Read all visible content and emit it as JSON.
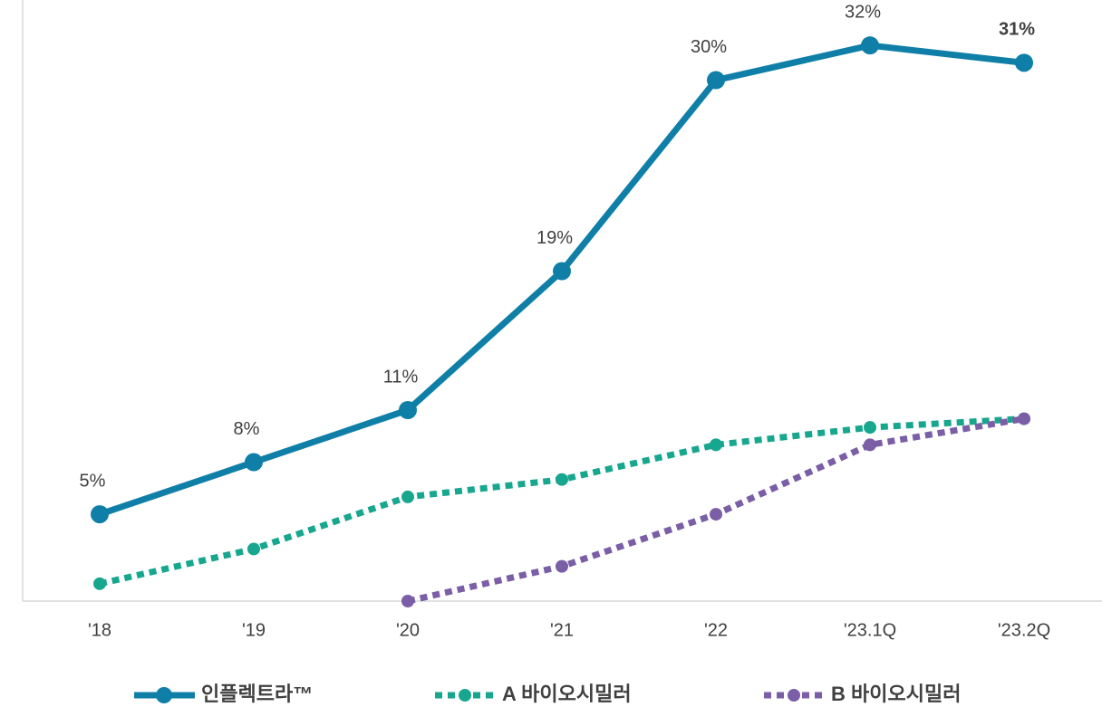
{
  "chart_data": {
    "type": "line",
    "categories": [
      "'18",
      "'19",
      "'20",
      "'21",
      "'22",
      "'23.1Q",
      "'23.2Q"
    ],
    "series": [
      {
        "name": "인플렉트라™",
        "color": "#0f7fa8",
        "line_style": "solid",
        "values": [
          5,
          8,
          11,
          19,
          30,
          32,
          31
        ],
        "value_labels": [
          "5%",
          "8%",
          "11%",
          "19%",
          "30%",
          "32%",
          "31%"
        ]
      },
      {
        "name": "A 바이오시밀러",
        "color": "#17a78e",
        "line_style": "dotted",
        "values": [
          1,
          3,
          6,
          7,
          9,
          10,
          10.5
        ]
      },
      {
        "name": "B 바이오시밀러",
        "color": "#7a5ea6",
        "line_style": "dotted",
        "values": [
          null,
          null,
          0,
          2,
          5,
          9,
          10.5
        ]
      }
    ],
    "ylim": [
      0,
      33
    ],
    "legend": "bottom"
  }
}
